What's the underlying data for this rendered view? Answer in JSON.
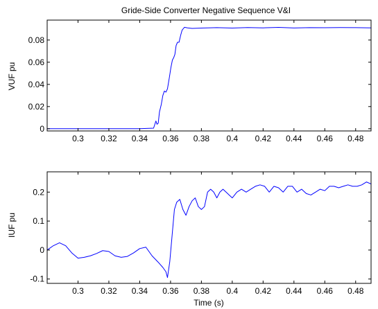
{
  "chart_data": [
    {
      "type": "line",
      "title": "Gride-Side Converter Negative Sequence V&I",
      "xlabel": "",
      "ylabel": "VUF pu",
      "xlim": [
        0.28,
        0.49
      ],
      "ylim": [
        -0.002,
        0.098
      ],
      "x_ticks": [
        0.3,
        0.32,
        0.34,
        0.36,
        0.38,
        0.4,
        0.42,
        0.44,
        0.46,
        0.48
      ],
      "x_tick_labels": [
        "0.3",
        "0.32",
        "0.34",
        "0.36",
        "0.38",
        "0.4",
        "0.42",
        "0.44",
        "0.46",
        "0.48"
      ],
      "y_ticks": [
        0,
        0.02,
        0.04,
        0.06,
        0.08
      ],
      "y_tick_labels": [
        "0",
        "0.02",
        "0.04",
        "0.06",
        "0.08"
      ],
      "grid": false,
      "series": [
        {
          "color": "#0000ff",
          "x": [
            0.28,
            0.3,
            0.32,
            0.34,
            0.349,
            0.3505,
            0.3512,
            0.352,
            0.3528,
            0.354,
            0.355,
            0.356,
            0.357,
            0.358,
            0.3592,
            0.3602,
            0.3612,
            0.362,
            0.3628,
            0.3636,
            0.3645,
            0.3655,
            0.3665,
            0.3675,
            0.369,
            0.371,
            0.374,
            0.38,
            0.39,
            0.4,
            0.41,
            0.42,
            0.43,
            0.44,
            0.45,
            0.46,
            0.47,
            0.48,
            0.49
          ],
          "y": [
            0,
            0,
            0,
            0,
            0.0005,
            0.007,
            0.004,
            0.005,
            0.015,
            0.022,
            0.03,
            0.034,
            0.033,
            0.036,
            0.046,
            0.055,
            0.062,
            0.064,
            0.067,
            0.075,
            0.078,
            0.078,
            0.084,
            0.089,
            0.0915,
            0.091,
            0.0905,
            0.0908,
            0.0912,
            0.0908,
            0.0913,
            0.091,
            0.0914,
            0.0909,
            0.0912,
            0.0911,
            0.0913,
            0.0912,
            0.091
          ]
        }
      ]
    },
    {
      "type": "line",
      "title": "",
      "xlabel": "Time (s)",
      "ylabel": "IUF pu",
      "xlim": [
        0.28,
        0.49
      ],
      "ylim": [
        -0.115,
        0.27
      ],
      "x_ticks": [
        0.3,
        0.32,
        0.34,
        0.36,
        0.38,
        0.4,
        0.42,
        0.44,
        0.46,
        0.48
      ],
      "x_tick_labels": [
        "0.3",
        "0.32",
        "0.34",
        "0.36",
        "0.38",
        "0.4",
        "0.42",
        "0.44",
        "0.46",
        "0.48"
      ],
      "y_ticks": [
        -0.1,
        0,
        0.1,
        0.2
      ],
      "y_tick_labels": [
        "-0.1",
        "0",
        "0.1",
        "0.2"
      ],
      "grid": false,
      "series": [
        {
          "color": "#0000ff",
          "x": [
            0.28,
            0.284,
            0.288,
            0.292,
            0.296,
            0.3,
            0.304,
            0.308,
            0.312,
            0.316,
            0.32,
            0.324,
            0.328,
            0.332,
            0.336,
            0.34,
            0.344,
            0.348,
            0.352,
            0.355,
            0.357,
            0.358,
            0.3595,
            0.361,
            0.3625,
            0.364,
            0.366,
            0.368,
            0.37,
            0.372,
            0.374,
            0.376,
            0.378,
            0.38,
            0.382,
            0.384,
            0.386,
            0.388,
            0.39,
            0.392,
            0.394,
            0.396,
            0.398,
            0.4,
            0.403,
            0.406,
            0.409,
            0.412,
            0.415,
            0.418,
            0.421,
            0.424,
            0.427,
            0.43,
            0.433,
            0.436,
            0.439,
            0.442,
            0.445,
            0.448,
            0.451,
            0.454,
            0.457,
            0.46,
            0.463,
            0.466,
            0.469,
            0.472,
            0.475,
            0.478,
            0.481,
            0.484,
            0.487,
            0.49
          ],
          "y": [
            0.0,
            0.015,
            0.025,
            0.015,
            -0.01,
            -0.028,
            -0.025,
            -0.02,
            -0.012,
            -0.002,
            -0.005,
            -0.02,
            -0.025,
            -0.022,
            -0.01,
            0.005,
            0.01,
            -0.02,
            -0.042,
            -0.06,
            -0.075,
            -0.095,
            -0.04,
            0.05,
            0.14,
            0.165,
            0.175,
            0.14,
            0.12,
            0.15,
            0.17,
            0.18,
            0.15,
            0.14,
            0.15,
            0.2,
            0.21,
            0.2,
            0.18,
            0.2,
            0.21,
            0.2,
            0.19,
            0.18,
            0.2,
            0.21,
            0.2,
            0.21,
            0.22,
            0.225,
            0.22,
            0.2,
            0.22,
            0.215,
            0.2,
            0.22,
            0.22,
            0.2,
            0.21,
            0.195,
            0.19,
            0.2,
            0.21,
            0.205,
            0.22,
            0.22,
            0.215,
            0.22,
            0.225,
            0.22,
            0.22,
            0.225,
            0.235,
            0.228
          ]
        }
      ]
    }
  ]
}
